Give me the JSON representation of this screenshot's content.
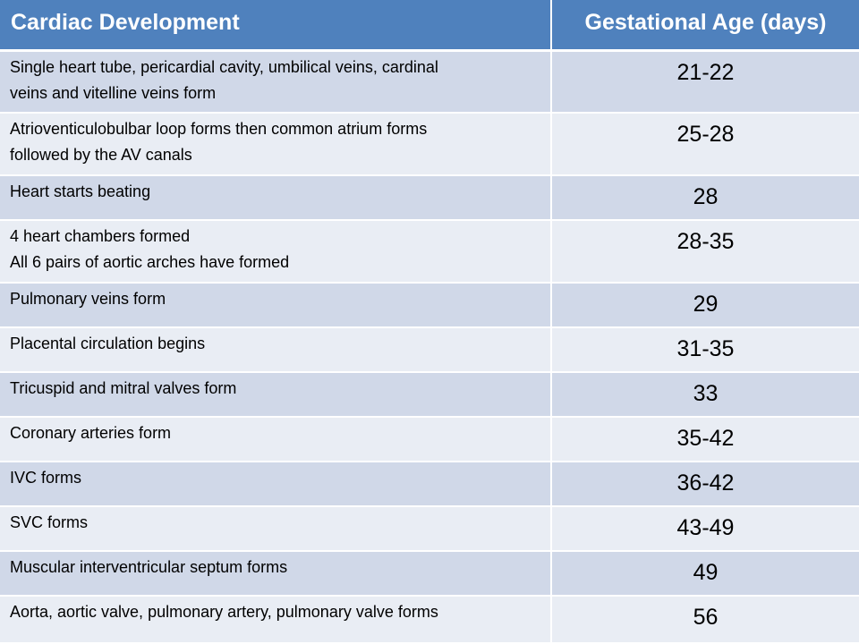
{
  "table": {
    "headers": {
      "development": "Cardiac Development",
      "age": "Gestational Age (days)"
    },
    "rows": [
      {
        "line1": "Single heart tube, pericardial cavity, umbilical veins, cardinal",
        "line2": "veins and vitelline veins form",
        "age": "21-22"
      },
      {
        "line1": "Atrioventiculobulbar loop forms then common atrium forms",
        "line2": "followed by the AV canals",
        "age": "25-28"
      },
      {
        "line1": "Heart starts beating",
        "age": "28"
      },
      {
        "line1": "4 heart chambers formed",
        "line2": "All 6 pairs of aortic arches have formed",
        "age": "28-35"
      },
      {
        "line1": "Pulmonary veins form",
        "age": "29"
      },
      {
        "line1": "Placental circulation begins",
        "age": "31-35"
      },
      {
        "line1": "Tricuspid and mitral valves form",
        "age": "33"
      },
      {
        "line1": "Coronary arteries form",
        "age": "35-42"
      },
      {
        "line1": "IVC forms",
        "age": "36-42"
      },
      {
        "line1": "SVC forms",
        "age": "43-49"
      },
      {
        "line1": "Muscular interventricular septum forms",
        "age": "49"
      },
      {
        "line1": "Aorta, aortic valve, pulmonary artery, pulmonary valve forms",
        "age": "56"
      }
    ]
  },
  "colors": {
    "header_bg": "#4f81bd",
    "header_text": "#ffffff",
    "row_band_dark": "#d0d8e8",
    "row_band_light": "#e9edf4",
    "divider": "#ffffff"
  }
}
